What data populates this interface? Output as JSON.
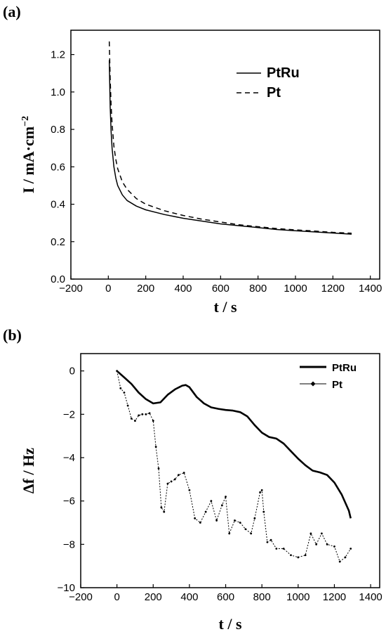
{
  "chart_data": [
    {
      "panel": "(a)",
      "type": "line",
      "xlabel": "t / s",
      "ylabel_main": "I / mA·cm",
      "ylabel_sup": "−2",
      "xlim": [
        -200,
        1450
      ],
      "ylim": [
        0.0,
        1.33
      ],
      "xticks": [
        -200,
        0,
        200,
        400,
        600,
        800,
        1000,
        1200,
        1400
      ],
      "xtick_labels": [
        "−200",
        "0",
        "200",
        "400",
        "600",
        "800",
        "1000",
        "1200",
        "1400"
      ],
      "yticks": [
        0.0,
        0.2,
        0.4,
        0.6,
        0.8,
        1.0,
        1.2
      ],
      "ytick_labels": [
        "0.0",
        "0.2",
        "0.4",
        "0.6",
        "0.8",
        "1.0",
        "1.2"
      ],
      "grid": false,
      "legend_position": "top-right",
      "series": [
        {
          "name": "PtRu",
          "style": "solid",
          "x": [
            5,
            10,
            15,
            20,
            30,
            40,
            50,
            75,
            100,
            150,
            200,
            300,
            400,
            500,
            600,
            700,
            800,
            900,
            1000,
            1100,
            1200,
            1300
          ],
          "y": [
            1.17,
            0.92,
            0.79,
            0.7,
            0.6,
            0.54,
            0.5,
            0.45,
            0.42,
            0.39,
            0.37,
            0.345,
            0.325,
            0.31,
            0.295,
            0.285,
            0.275,
            0.265,
            0.258,
            0.252,
            0.246,
            0.24
          ]
        },
        {
          "name": "Pt",
          "style": "dashed",
          "x": [
            5,
            10,
            15,
            20,
            30,
            40,
            50,
            75,
            100,
            150,
            200,
            300,
            400,
            500,
            600,
            700,
            800,
            900,
            1000,
            1100,
            1200,
            1300
          ],
          "y": [
            1.27,
            1.07,
            0.93,
            0.83,
            0.71,
            0.64,
            0.59,
            0.52,
            0.48,
            0.43,
            0.4,
            0.365,
            0.34,
            0.32,
            0.305,
            0.29,
            0.28,
            0.27,
            0.263,
            0.257,
            0.25,
            0.245
          ]
        }
      ]
    },
    {
      "panel": "(b)",
      "type": "line",
      "xlabel": "t / s",
      "ylabel": "Δf / Hz",
      "xlim": [
        -200,
        1450
      ],
      "ylim": [
        -10,
        0.8
      ],
      "xticks": [
        -200,
        0,
        200,
        400,
        600,
        800,
        1000,
        1200,
        1400
      ],
      "xtick_labels": [
        "−200",
        "0",
        "200",
        "400",
        "600",
        "800",
        "1000",
        "1200",
        "1400"
      ],
      "yticks": [
        -10,
        -8,
        -6,
        -4,
        -2,
        0
      ],
      "ytick_labels": [
        "−10",
        "−8",
        "−6",
        "−4",
        "−2",
        "0"
      ],
      "grid": false,
      "legend_position": "top-right",
      "series": [
        {
          "name": "PtRu",
          "style": "thick-solid",
          "x": [
            0,
            40,
            80,
            120,
            160,
            200,
            240,
            280,
            320,
            360,
            380,
            400,
            440,
            480,
            520,
            560,
            600,
            640,
            680,
            720,
            760,
            800,
            840,
            880,
            920,
            960,
            1000,
            1040,
            1080,
            1120,
            1160,
            1200,
            1240,
            1280,
            1290
          ],
          "y": [
            0,
            -0.3,
            -0.6,
            -1.0,
            -1.3,
            -1.5,
            -1.45,
            -1.1,
            -0.85,
            -0.68,
            -0.65,
            -0.75,
            -1.2,
            -1.5,
            -1.68,
            -1.75,
            -1.8,
            -1.83,
            -1.9,
            -2.1,
            -2.5,
            -2.85,
            -3.05,
            -3.12,
            -3.35,
            -3.7,
            -4.05,
            -4.35,
            -4.6,
            -4.68,
            -4.8,
            -5.15,
            -5.7,
            -6.45,
            -6.8
          ]
        },
        {
          "name": "Pt",
          "style": "dotted-markers",
          "x": [
            0,
            20,
            40,
            60,
            80,
            100,
            120,
            140,
            160,
            180,
            200,
            215,
            230,
            245,
            260,
            280,
            300,
            320,
            340,
            370,
            400,
            430,
            460,
            490,
            520,
            550,
            580,
            600,
            620,
            650,
            680,
            710,
            740,
            760,
            790,
            800,
            810,
            830,
            850,
            880,
            920,
            960,
            1000,
            1040,
            1070,
            1100,
            1130,
            1160,
            1200,
            1230,
            1260,
            1290
          ],
          "y": [
            0,
            -0.8,
            -1.0,
            -1.6,
            -2.2,
            -2.3,
            -2.05,
            -2.0,
            -2.0,
            -1.95,
            -2.3,
            -3.5,
            -4.5,
            -6.3,
            -6.5,
            -5.2,
            -5.1,
            -5.0,
            -4.8,
            -4.7,
            -5.5,
            -6.8,
            -7.0,
            -6.5,
            -6.0,
            -6.9,
            -6.2,
            -5.8,
            -7.5,
            -6.9,
            -7.0,
            -7.3,
            -7.5,
            -6.8,
            -5.6,
            -5.5,
            -6.5,
            -7.9,
            -7.8,
            -8.2,
            -8.2,
            -8.5,
            -8.6,
            -8.5,
            -7.5,
            -8.0,
            -7.5,
            -8.0,
            -8.1,
            -8.8,
            -8.6,
            -8.2
          ]
        }
      ]
    }
  ]
}
